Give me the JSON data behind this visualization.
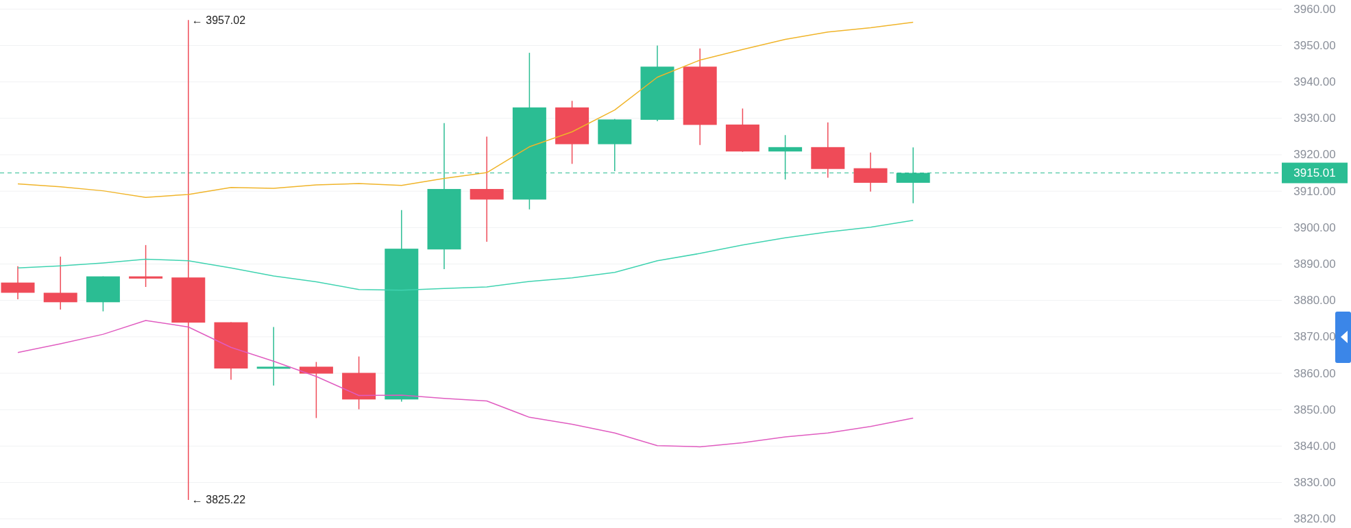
{
  "chart_data": {
    "type": "candlestick",
    "categories": [
      null,
      null,
      null,
      null,
      null,
      null,
      null,
      null,
      null,
      null,
      null,
      null,
      null,
      null,
      null,
      null,
      null,
      null,
      null,
      null,
      null,
      null
    ],
    "ohlc": [
      [
        3884.9,
        3889.4,
        3880.3,
        3882.1
      ],
      [
        3882.1,
        3892.0,
        3877.5,
        3879.5
      ],
      [
        3879.5,
        3886.6,
        3877.0,
        3886.6
      ],
      [
        3886.6,
        3895.2,
        3883.7,
        3886.0
      ],
      [
        3886.3,
        3957.02,
        3825.22,
        3873.9
      ],
      [
        3874.0,
        3874.0,
        3858.2,
        3861.3
      ],
      [
        3861.3,
        3872.7,
        3856.6,
        3861.8
      ],
      [
        3861.8,
        3863.1,
        3847.7,
        3859.9
      ],
      [
        3860.1,
        3864.6,
        3850.1,
        3852.8
      ],
      [
        3852.8,
        3904.8,
        3852.2,
        3894.2
      ],
      [
        3894.0,
        3928.7,
        3888.6,
        3910.6
      ],
      [
        3910.6,
        3925.0,
        3896.1,
        3907.7
      ],
      [
        3907.7,
        3948.0,
        3905.0,
        3933.0
      ],
      [
        3933.0,
        3934.8,
        3917.5,
        3922.9
      ],
      [
        3922.9,
        3929.8,
        3915.5,
        3929.7
      ],
      [
        3929.6,
        3950.0,
        3929.2,
        3944.2
      ],
      [
        3944.2,
        3949.2,
        3922.7,
        3928.2
      ],
      [
        3928.3,
        3932.7,
        3920.8,
        3920.9
      ],
      [
        3920.9,
        3925.4,
        3913.2,
        3922.1
      ],
      [
        3922.1,
        3928.9,
        3913.7,
        3916.1
      ],
      [
        3916.3,
        3920.6,
        3909.9,
        3912.3
      ],
      [
        3912.3,
        3922.0,
        3906.7,
        3915.01
      ]
    ],
    "colors": [
      "#ef4b58",
      "#ef4b58",
      "#2bbd93",
      "#ef4b58",
      "#ef4b58",
      "#ef4b58",
      "#2bbd93",
      "#ef4b58",
      "#ef4b58",
      "#2bbd93",
      "#2bbd93",
      "#ef4b58",
      "#2bbd93",
      "#ef4b58",
      "#2bbd93",
      "#2bbd93",
      "#ef4b58",
      "#ef4b58",
      "#2bbd93",
      "#ef4b58",
      "#ef4b58",
      "#2bbd93"
    ],
    "series": [
      {
        "type": "line",
        "color": "#f0b429",
        "values": [
          3912.0,
          3911.2,
          3910.1,
          3908.3,
          3909.1,
          3911.0,
          3910.8,
          3911.7,
          3912.1,
          3911.6,
          3913.5,
          3915.1,
          3922.2,
          3926.3,
          3932.3,
          3941.3,
          3946.0,
          3948.9,
          3951.7,
          3953.7,
          3954.9,
          3956.4
        ]
      },
      {
        "type": "line",
        "color": "#3fd3b0",
        "values": [
          3888.9,
          3889.5,
          3890.3,
          3891.3,
          3890.9,
          3888.9,
          3886.7,
          3885.1,
          3883.0,
          3882.8,
          3883.3,
          3883.7,
          3885.2,
          3886.2,
          3887.7,
          3890.9,
          3892.9,
          3895.2,
          3897.2,
          3898.8,
          3900.1,
          3902.0
        ]
      },
      {
        "type": "line",
        "color": "#e05cc0",
        "values": [
          3865.7,
          3868.1,
          3870.7,
          3874.5,
          3872.7,
          3867.1,
          3863.3,
          3859.1,
          3853.9,
          3854.0,
          3853.1,
          3852.4,
          3847.9,
          3846.0,
          3843.6,
          3840.1,
          3839.8,
          3840.9,
          3842.5,
          3843.6,
          3845.4,
          3847.7
        ]
      }
    ],
    "ylim": [
      3817.5,
      3962.5
    ],
    "yticks": [
      {
        "value": 3820,
        "label": "3820.00"
      },
      {
        "value": 3830,
        "label": "3830.00"
      },
      {
        "value": 3840,
        "label": "3840.00"
      },
      {
        "value": 3850,
        "label": "3850.00"
      },
      {
        "value": 3860,
        "label": "3860.00"
      },
      {
        "value": 3870,
        "label": "3870.00"
      },
      {
        "value": 3880,
        "label": "3880.00"
      },
      {
        "value": 3890,
        "label": "3890.00"
      },
      {
        "value": 3900,
        "label": "3900.00"
      },
      {
        "value": 3910,
        "label": "3910.00"
      },
      {
        "value": 3920,
        "label": "3920.00"
      },
      {
        "value": 3930,
        "label": "3930.00"
      },
      {
        "value": 3940,
        "label": "3940.00"
      },
      {
        "value": 3950,
        "label": "3950.00"
      },
      {
        "value": 3960,
        "label": "3960.00"
      }
    ],
    "grid": "y",
    "ref_lines": [
      {
        "axis": "y",
        "value": 3915.01,
        "label": "3915.01",
        "color": "#2bbd93",
        "line_style": "dashed"
      }
    ],
    "annotations": [
      "← 3957.02",
      "← 3825.22"
    ]
  }
}
